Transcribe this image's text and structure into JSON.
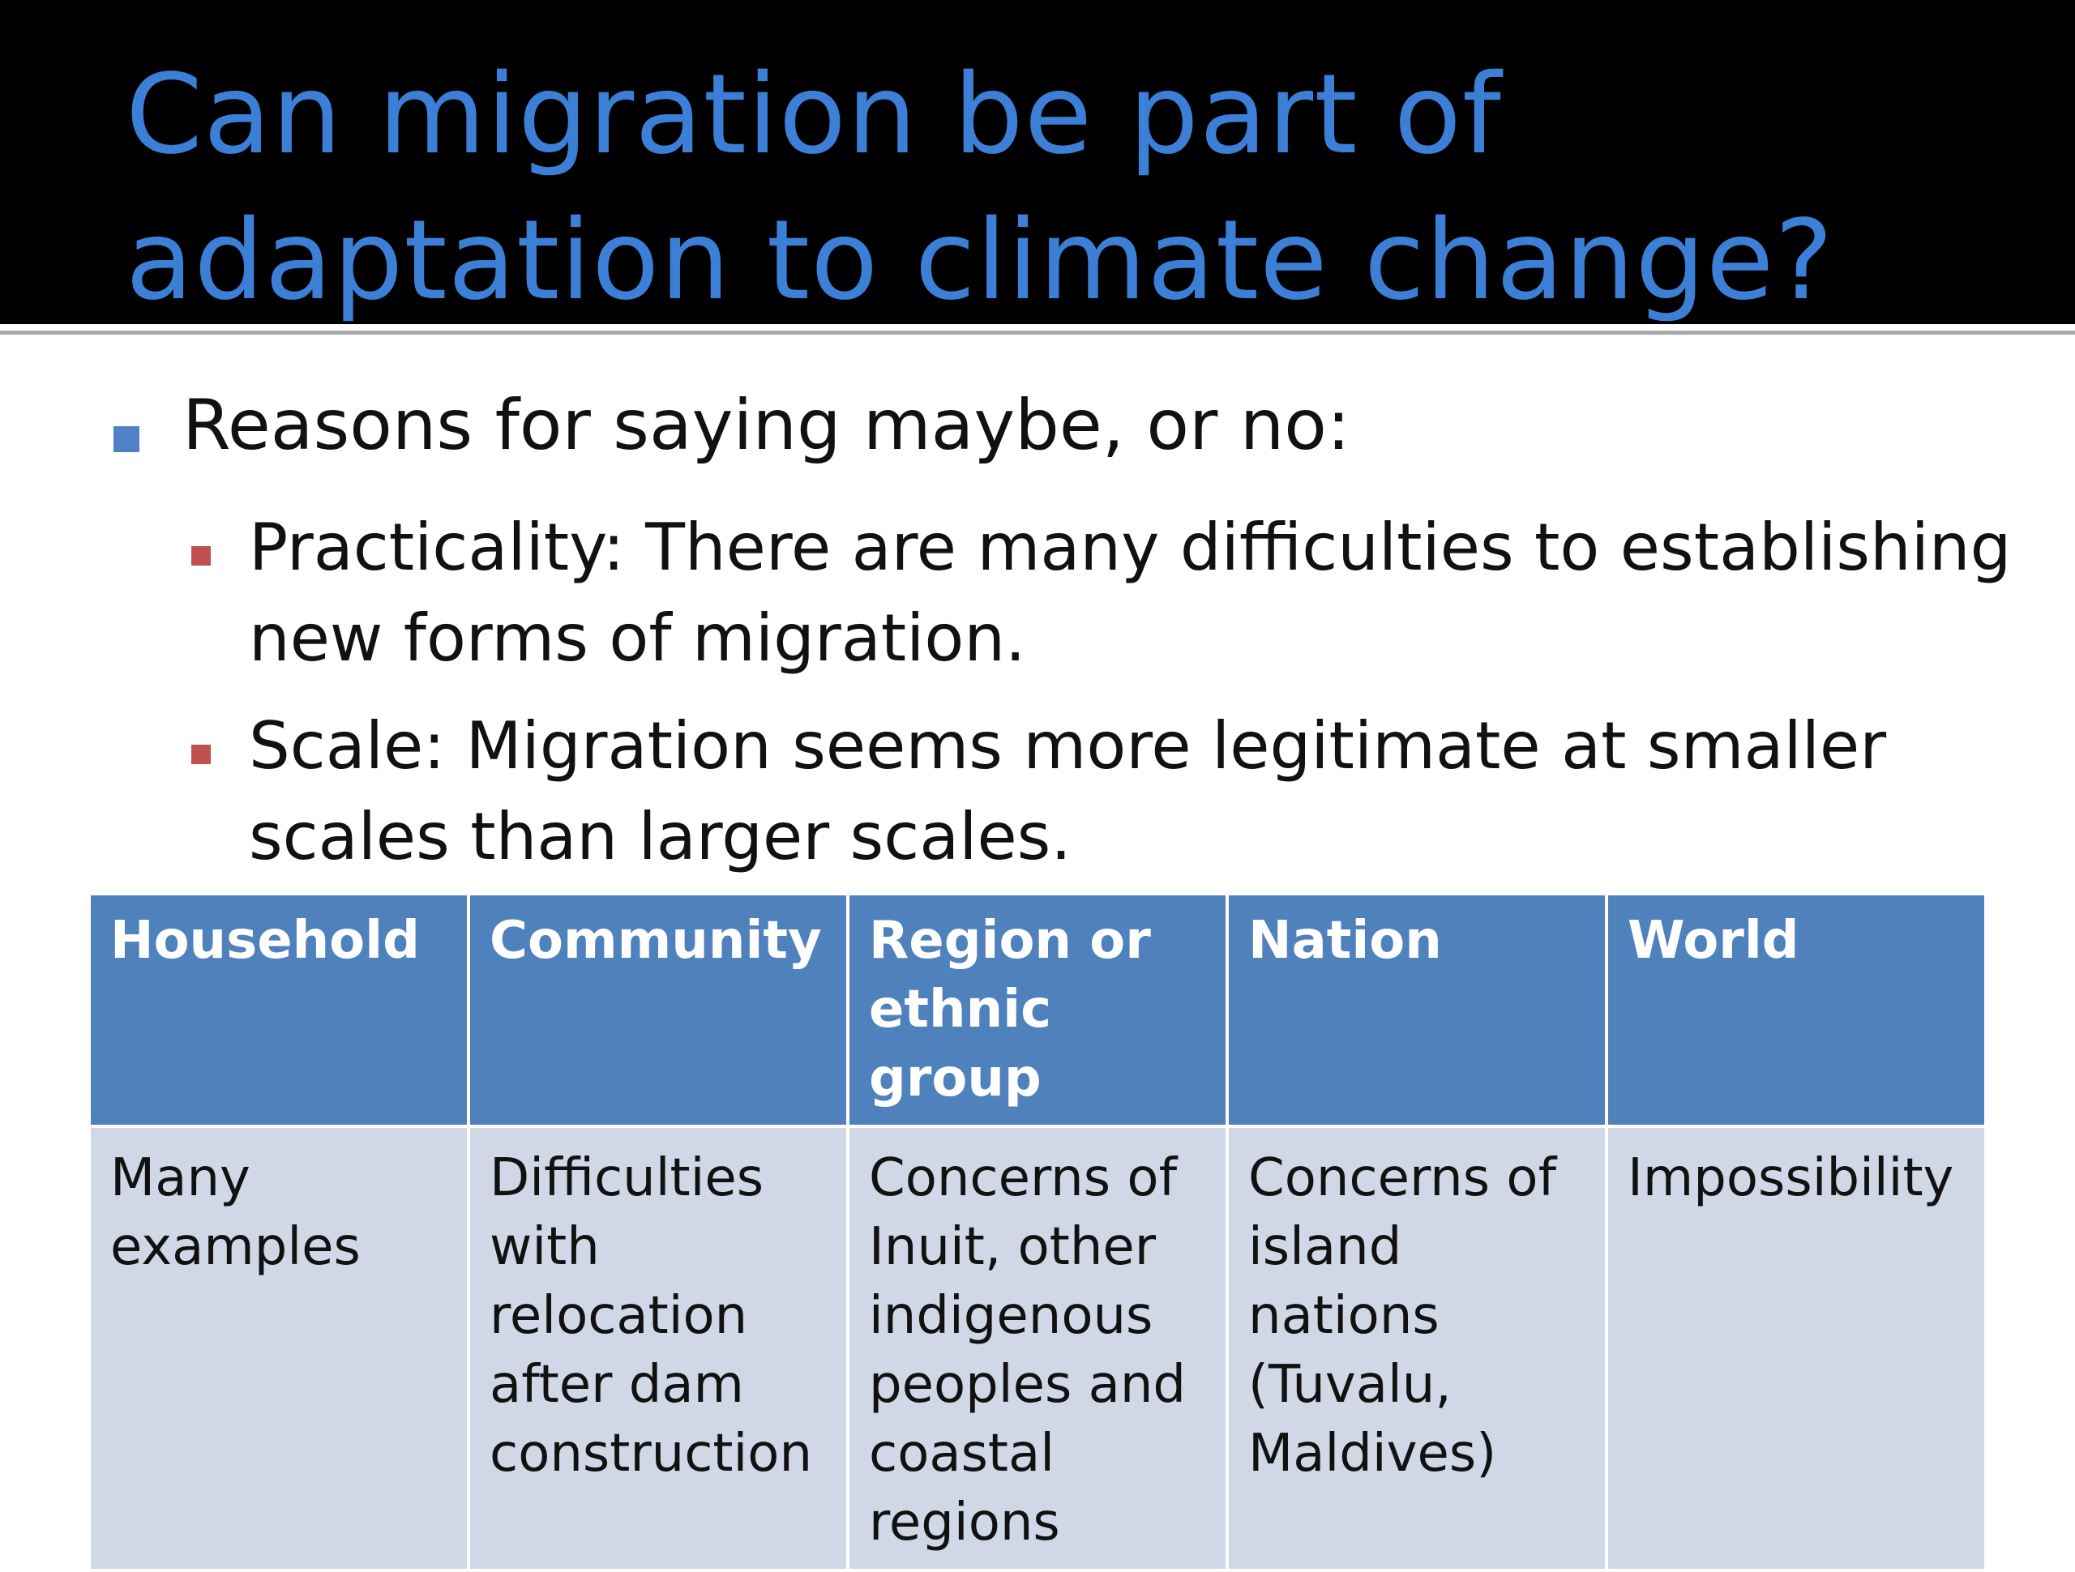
{
  "slide": {
    "title_lines": [
      "Can migration be part of",
      "adaptation to climate change?"
    ],
    "bullet": "Reasons for saying maybe, or no:",
    "sub_bullets": [
      {
        "lines": [
          "Practicality: There are many difficulties to establishing",
          "new forms of migration."
        ]
      },
      {
        "lines": [
          "Scale: Migration seems more legitimate at smaller",
          "scales than larger scales."
        ]
      }
    ]
  },
  "table": {
    "headers": [
      "Household",
      "Community",
      "Region or ethnic group",
      "Nation",
      "World"
    ],
    "row": [
      "Many examples",
      "Difficulties with relocation after dam construction",
      "Concerns of Inuit, other indigenous peoples and coastal regions",
      "Concerns of island nations (Tuvalu, Maldives)",
      "Impossibility"
    ]
  },
  "colors": {
    "title_text": "#3c7fd6",
    "header_bg": "#4f81bd",
    "cell_bg": "#d0d8e8",
    "bullet_l1": "#4f81c7",
    "bullet_l2": "#c0504d"
  }
}
